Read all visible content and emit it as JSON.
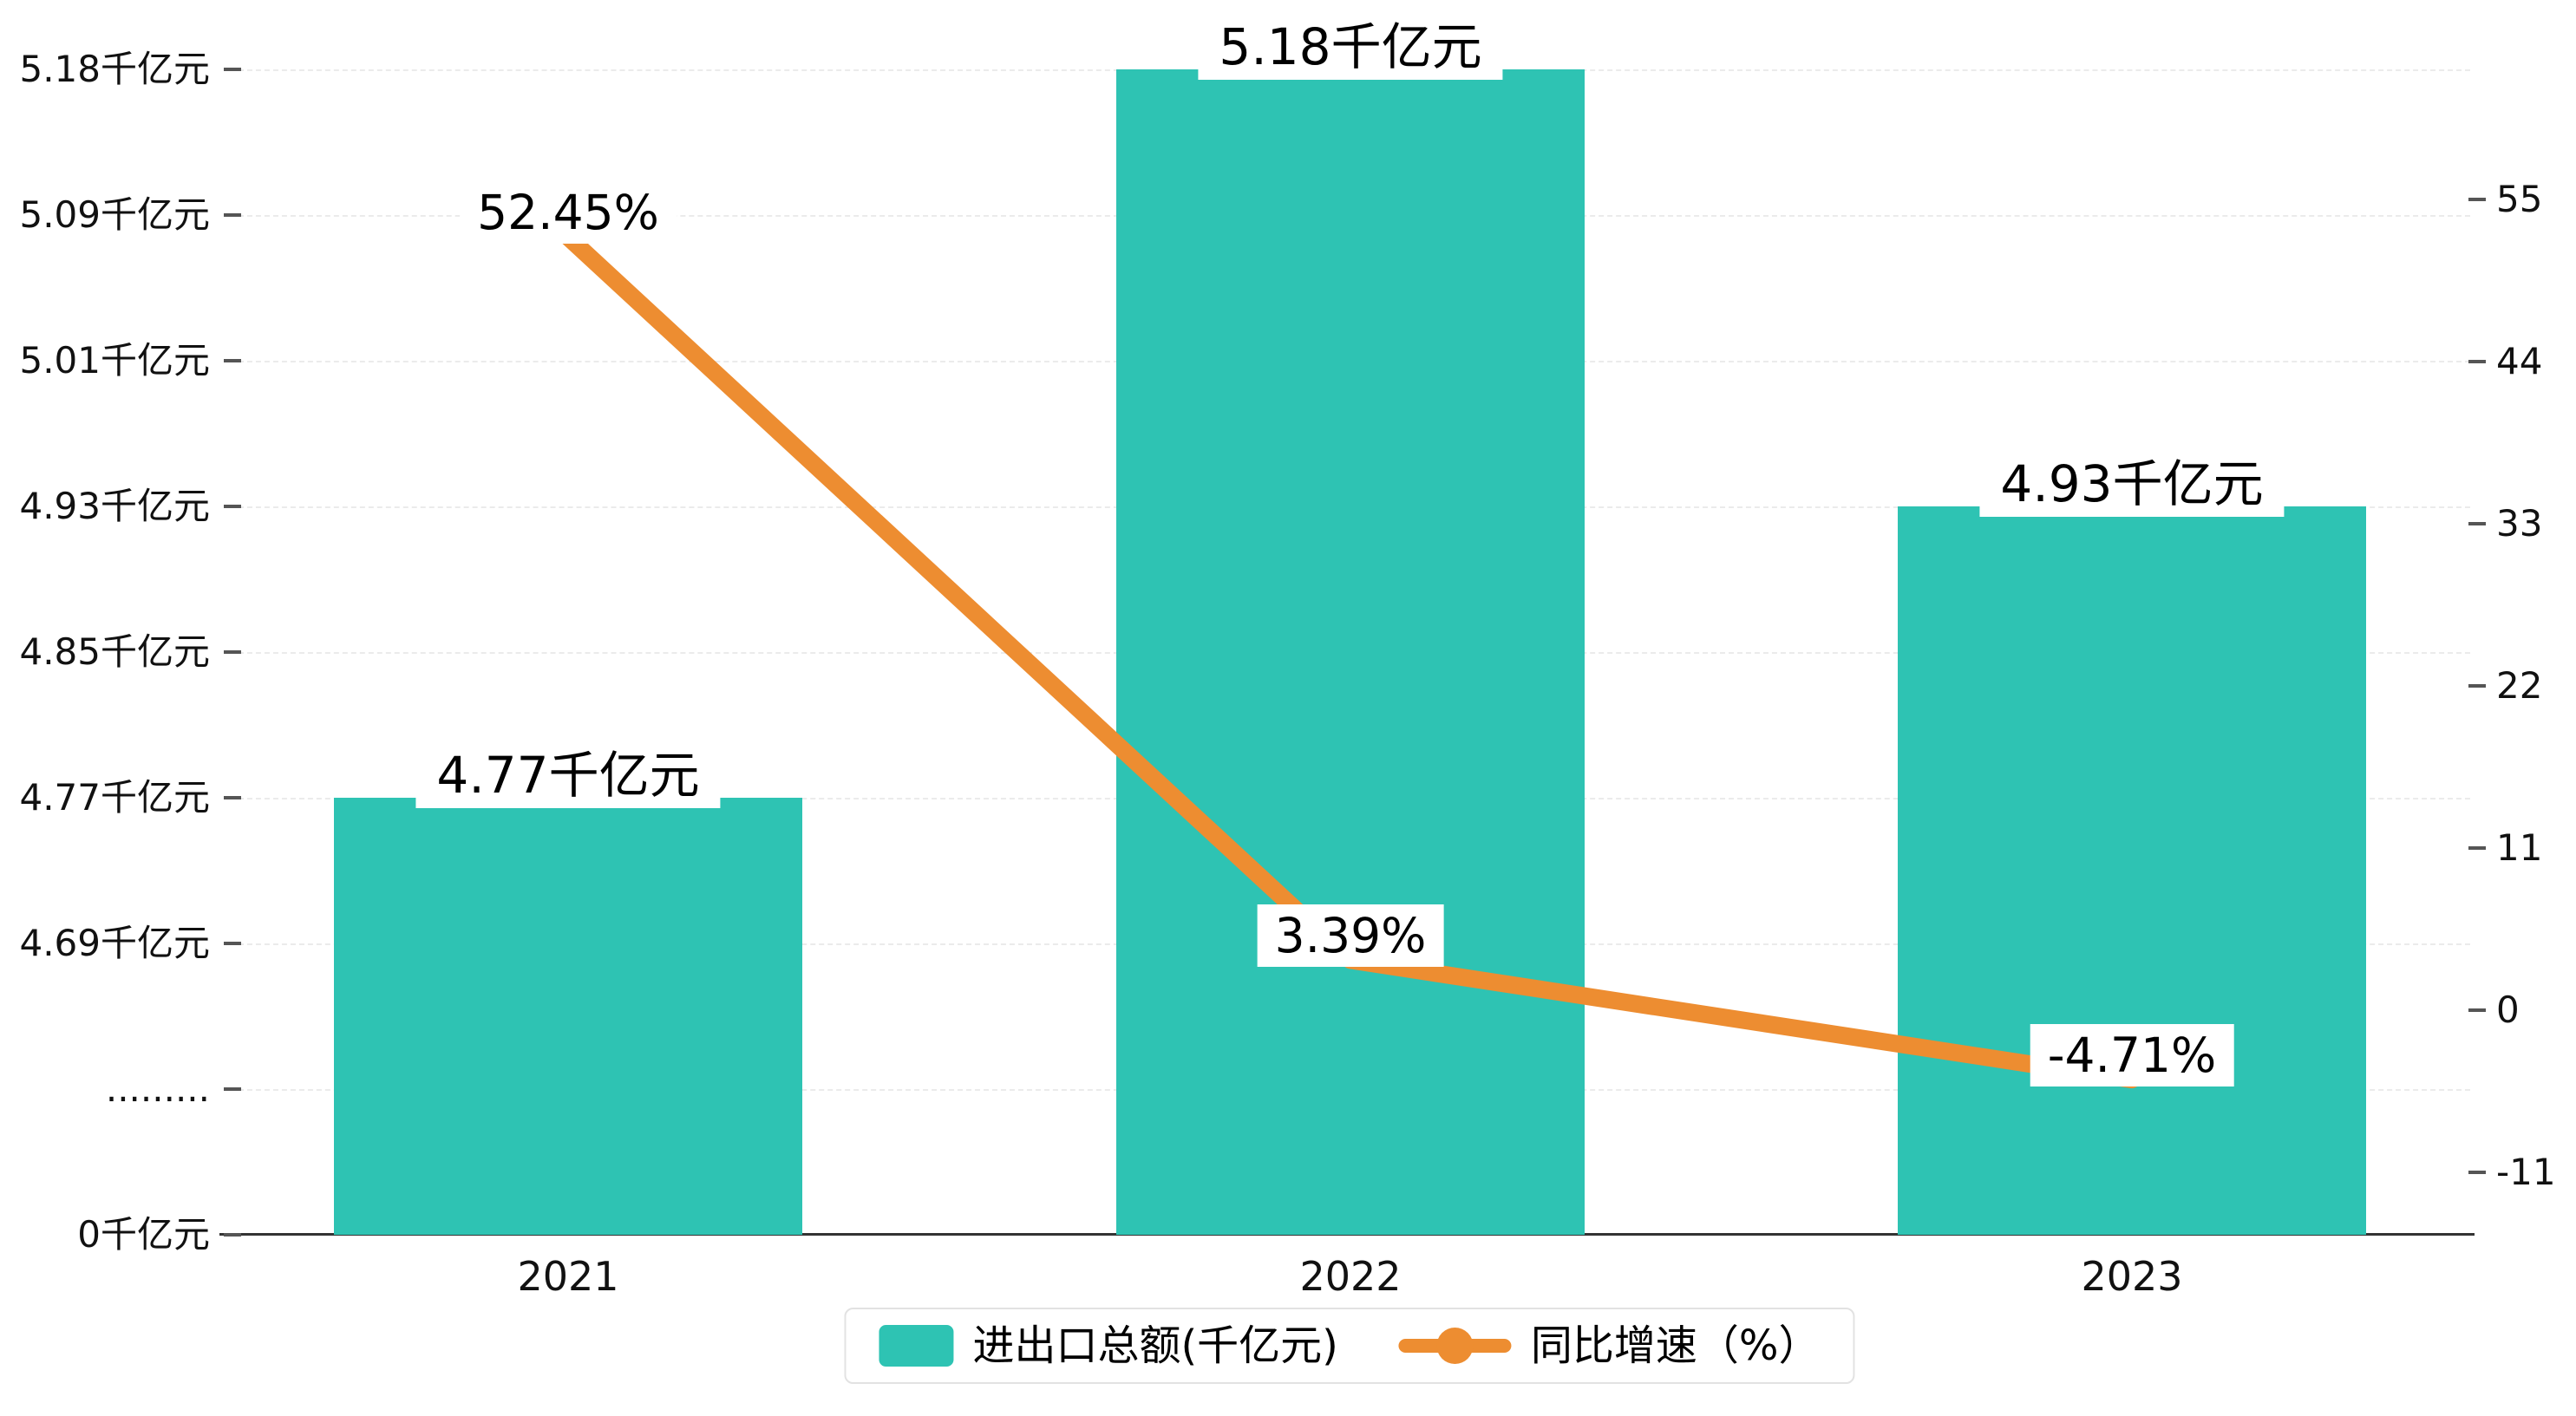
{
  "chart_data": {
    "type": "bar",
    "categories": [
      "2021",
      "2022",
      "2023"
    ],
    "series": [
      {
        "name": "进出口总额(千亿元)",
        "type": "bar",
        "axis": "left",
        "values": [
          4.77,
          5.18,
          4.93
        ],
        "labels": [
          "4.77千亿元",
          "5.18千亿元",
          "4.93千亿元"
        ],
        "color": "#2ec3b3"
      },
      {
        "name": "同比增速（%）",
        "type": "line",
        "axis": "right",
        "values": [
          52.45,
          3.39,
          -4.71
        ],
        "labels": [
          "52.45%",
          "3.39%",
          "-4.71%"
        ],
        "color": "#ed8d31"
      }
    ],
    "left_axis": {
      "ticks": [
        "5.18千亿元",
        "5.09千亿元",
        "5.01千亿元",
        "4.93千亿元",
        "4.85千亿元",
        "4.77千亿元",
        "4.69千亿元",
        ".........",
        "0千亿元"
      ],
      "has_break": true
    },
    "right_axis": {
      "ticks": [
        55,
        44,
        33,
        22,
        11,
        0,
        -11
      ]
    },
    "x_axis": {
      "labels": [
        "2021",
        "2022",
        "2023"
      ]
    },
    "legend": {
      "position": "bottom",
      "items": [
        "进出口总额(千亿元)",
        "同比增速（%）"
      ]
    },
    "grid": "dashed"
  },
  "colors": {
    "bar": "#2ec3b3",
    "line": "#ed8d31",
    "text": "#000000",
    "grid": "#ebebeb",
    "axis": "#333333"
  }
}
